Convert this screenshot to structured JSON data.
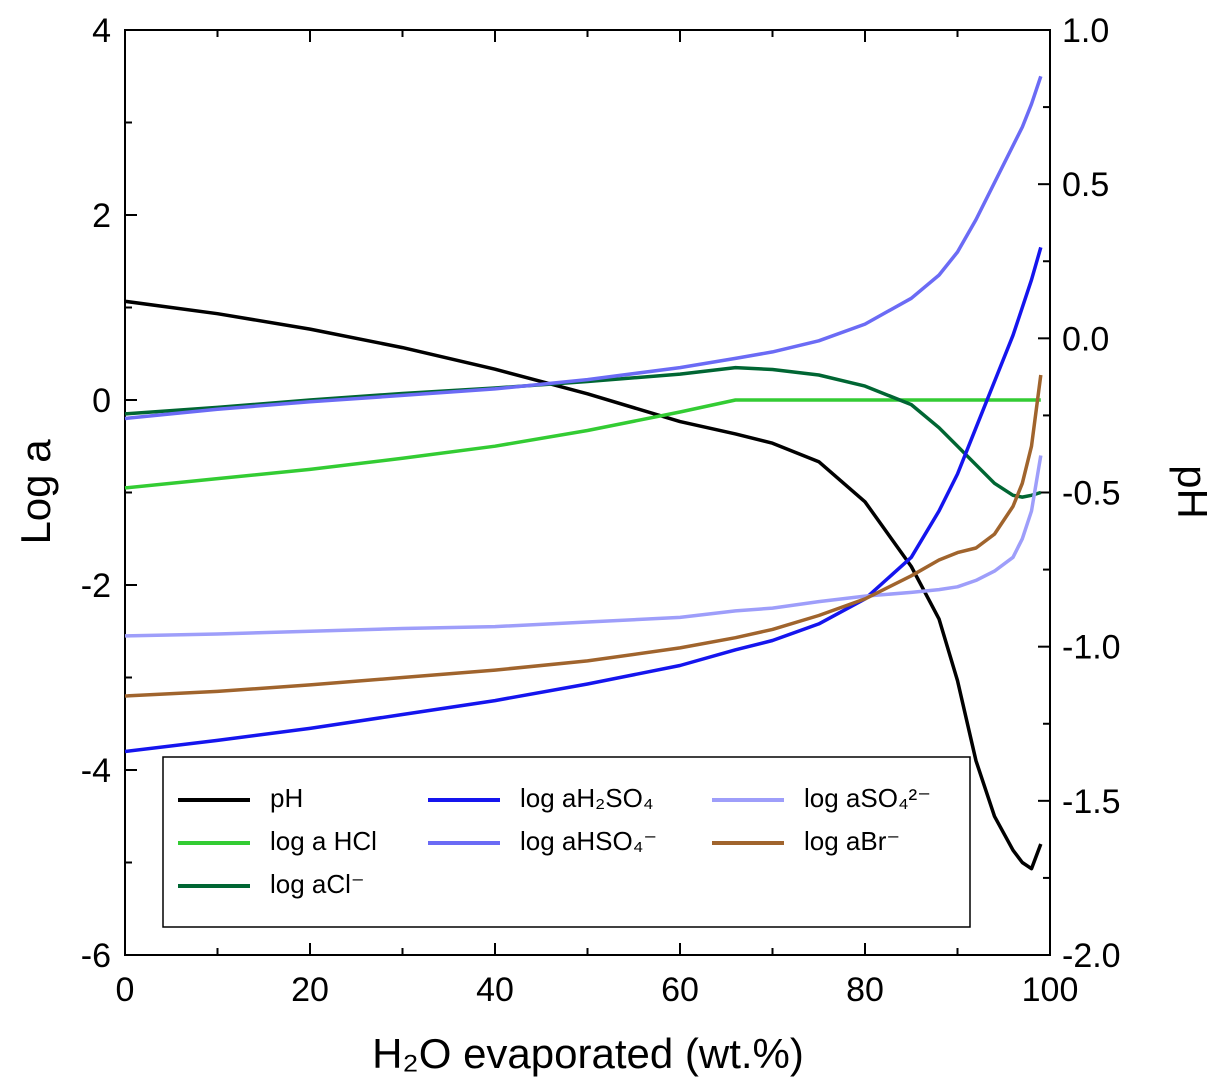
{
  "chart_data": {
    "type": "line",
    "x_label": "H₂O evaporated (wt.%)",
    "y_label": "Log a",
    "y2_label": "pH",
    "x": [
      0,
      10,
      20,
      30,
      40,
      50,
      60,
      66,
      70,
      75,
      80,
      85,
      88,
      90,
      92,
      94,
      96,
      97,
      98,
      99
    ],
    "xlim": [
      0,
      100
    ],
    "xticks": [
      0,
      20,
      40,
      60,
      80,
      100
    ],
    "xminor": [
      10,
      30,
      50,
      70,
      90
    ],
    "ylim": [
      -6,
      4
    ],
    "yticks": [
      -6,
      -4,
      -2,
      0,
      2,
      4
    ],
    "yminor": [
      -5,
      -3,
      -1,
      1,
      3
    ],
    "y2lim": [
      -2,
      1
    ],
    "y2ticks": [
      {
        "value": -2,
        "label": "-2.0"
      },
      -1.5,
      {
        "value": -1,
        "label": "-1.0"
      },
      -0.5,
      {
        "value": 0,
        "label": "0.0"
      },
      0.5,
      {
        "value": 1,
        "label": "1.0"
      }
    ],
    "y2minor": [
      -1.75,
      -1.25,
      -0.75,
      -0.25,
      0.25,
      0.75
    ],
    "legend": "lower left",
    "series": [
      {
        "name": "pH",
        "color": "#000000",
        "axis": "y2",
        "values": [
          0.12,
          0.08,
          0.03,
          -0.03,
          -0.1,
          -0.18,
          -0.27,
          -0.31,
          -0.34,
          -0.4,
          -0.53,
          -0.74,
          -0.91,
          -1.11,
          -1.37,
          -1.55,
          -1.66,
          -1.7,
          -1.72,
          -1.64
        ]
      },
      {
        "name": "log a HCl",
        "color": "#33cc33",
        "values": [
          -0.95,
          -0.85,
          -0.75,
          -0.63,
          -0.5,
          -0.33,
          -0.13,
          0,
          0,
          0,
          0,
          0,
          0,
          0,
          0,
          0,
          0,
          0,
          0,
          0
        ]
      },
      {
        "name": "log aCl⁻",
        "color": "#006633",
        "values": [
          -0.15,
          -0.08,
          0,
          0.07,
          0.13,
          0.2,
          0.28,
          0.35,
          0.33,
          0.27,
          0.15,
          -0.05,
          -0.3,
          -0.5,
          -0.7,
          -0.9,
          -1.03,
          -1.05,
          -1.03,
          -1.0
        ]
      },
      {
        "name": "log aH₂SO₄",
        "color": "#1515ee",
        "values": [
          -3.8,
          -3.68,
          -3.55,
          -3.4,
          -3.25,
          -3.07,
          -2.87,
          -2.7,
          -2.6,
          -2.42,
          -2.15,
          -1.7,
          -1.2,
          -0.8,
          -0.3,
          0.2,
          0.7,
          1.0,
          1.3,
          1.65
        ]
      },
      {
        "name": "log aHSO₄⁻",
        "color": "#6b6bf5",
        "values": [
          -0.2,
          -0.1,
          -0.02,
          0.05,
          0.12,
          0.22,
          0.35,
          0.45,
          0.52,
          0.64,
          0.82,
          1.1,
          1.35,
          1.6,
          1.95,
          2.35,
          2.75,
          2.95,
          3.2,
          3.5
        ]
      },
      {
        "name": "log aSO₄²⁻",
        "color": "#9e9efa",
        "values": [
          -2.55,
          -2.53,
          -2.5,
          -2.47,
          -2.45,
          -2.4,
          -2.35,
          -2.28,
          -2.25,
          -2.18,
          -2.12,
          -2.08,
          -2.05,
          -2.02,
          -1.95,
          -1.85,
          -1.7,
          -1.5,
          -1.2,
          -0.6
        ]
      },
      {
        "name": "log aBr⁻",
        "color": "#a0642d",
        "values": [
          -3.2,
          -3.15,
          -3.08,
          -3.0,
          -2.92,
          -2.82,
          -2.68,
          -2.57,
          -2.48,
          -2.33,
          -2.15,
          -1.9,
          -1.73,
          -1.65,
          -1.6,
          -1.45,
          -1.15,
          -0.9,
          -0.5,
          0.27
        ]
      }
    ]
  }
}
